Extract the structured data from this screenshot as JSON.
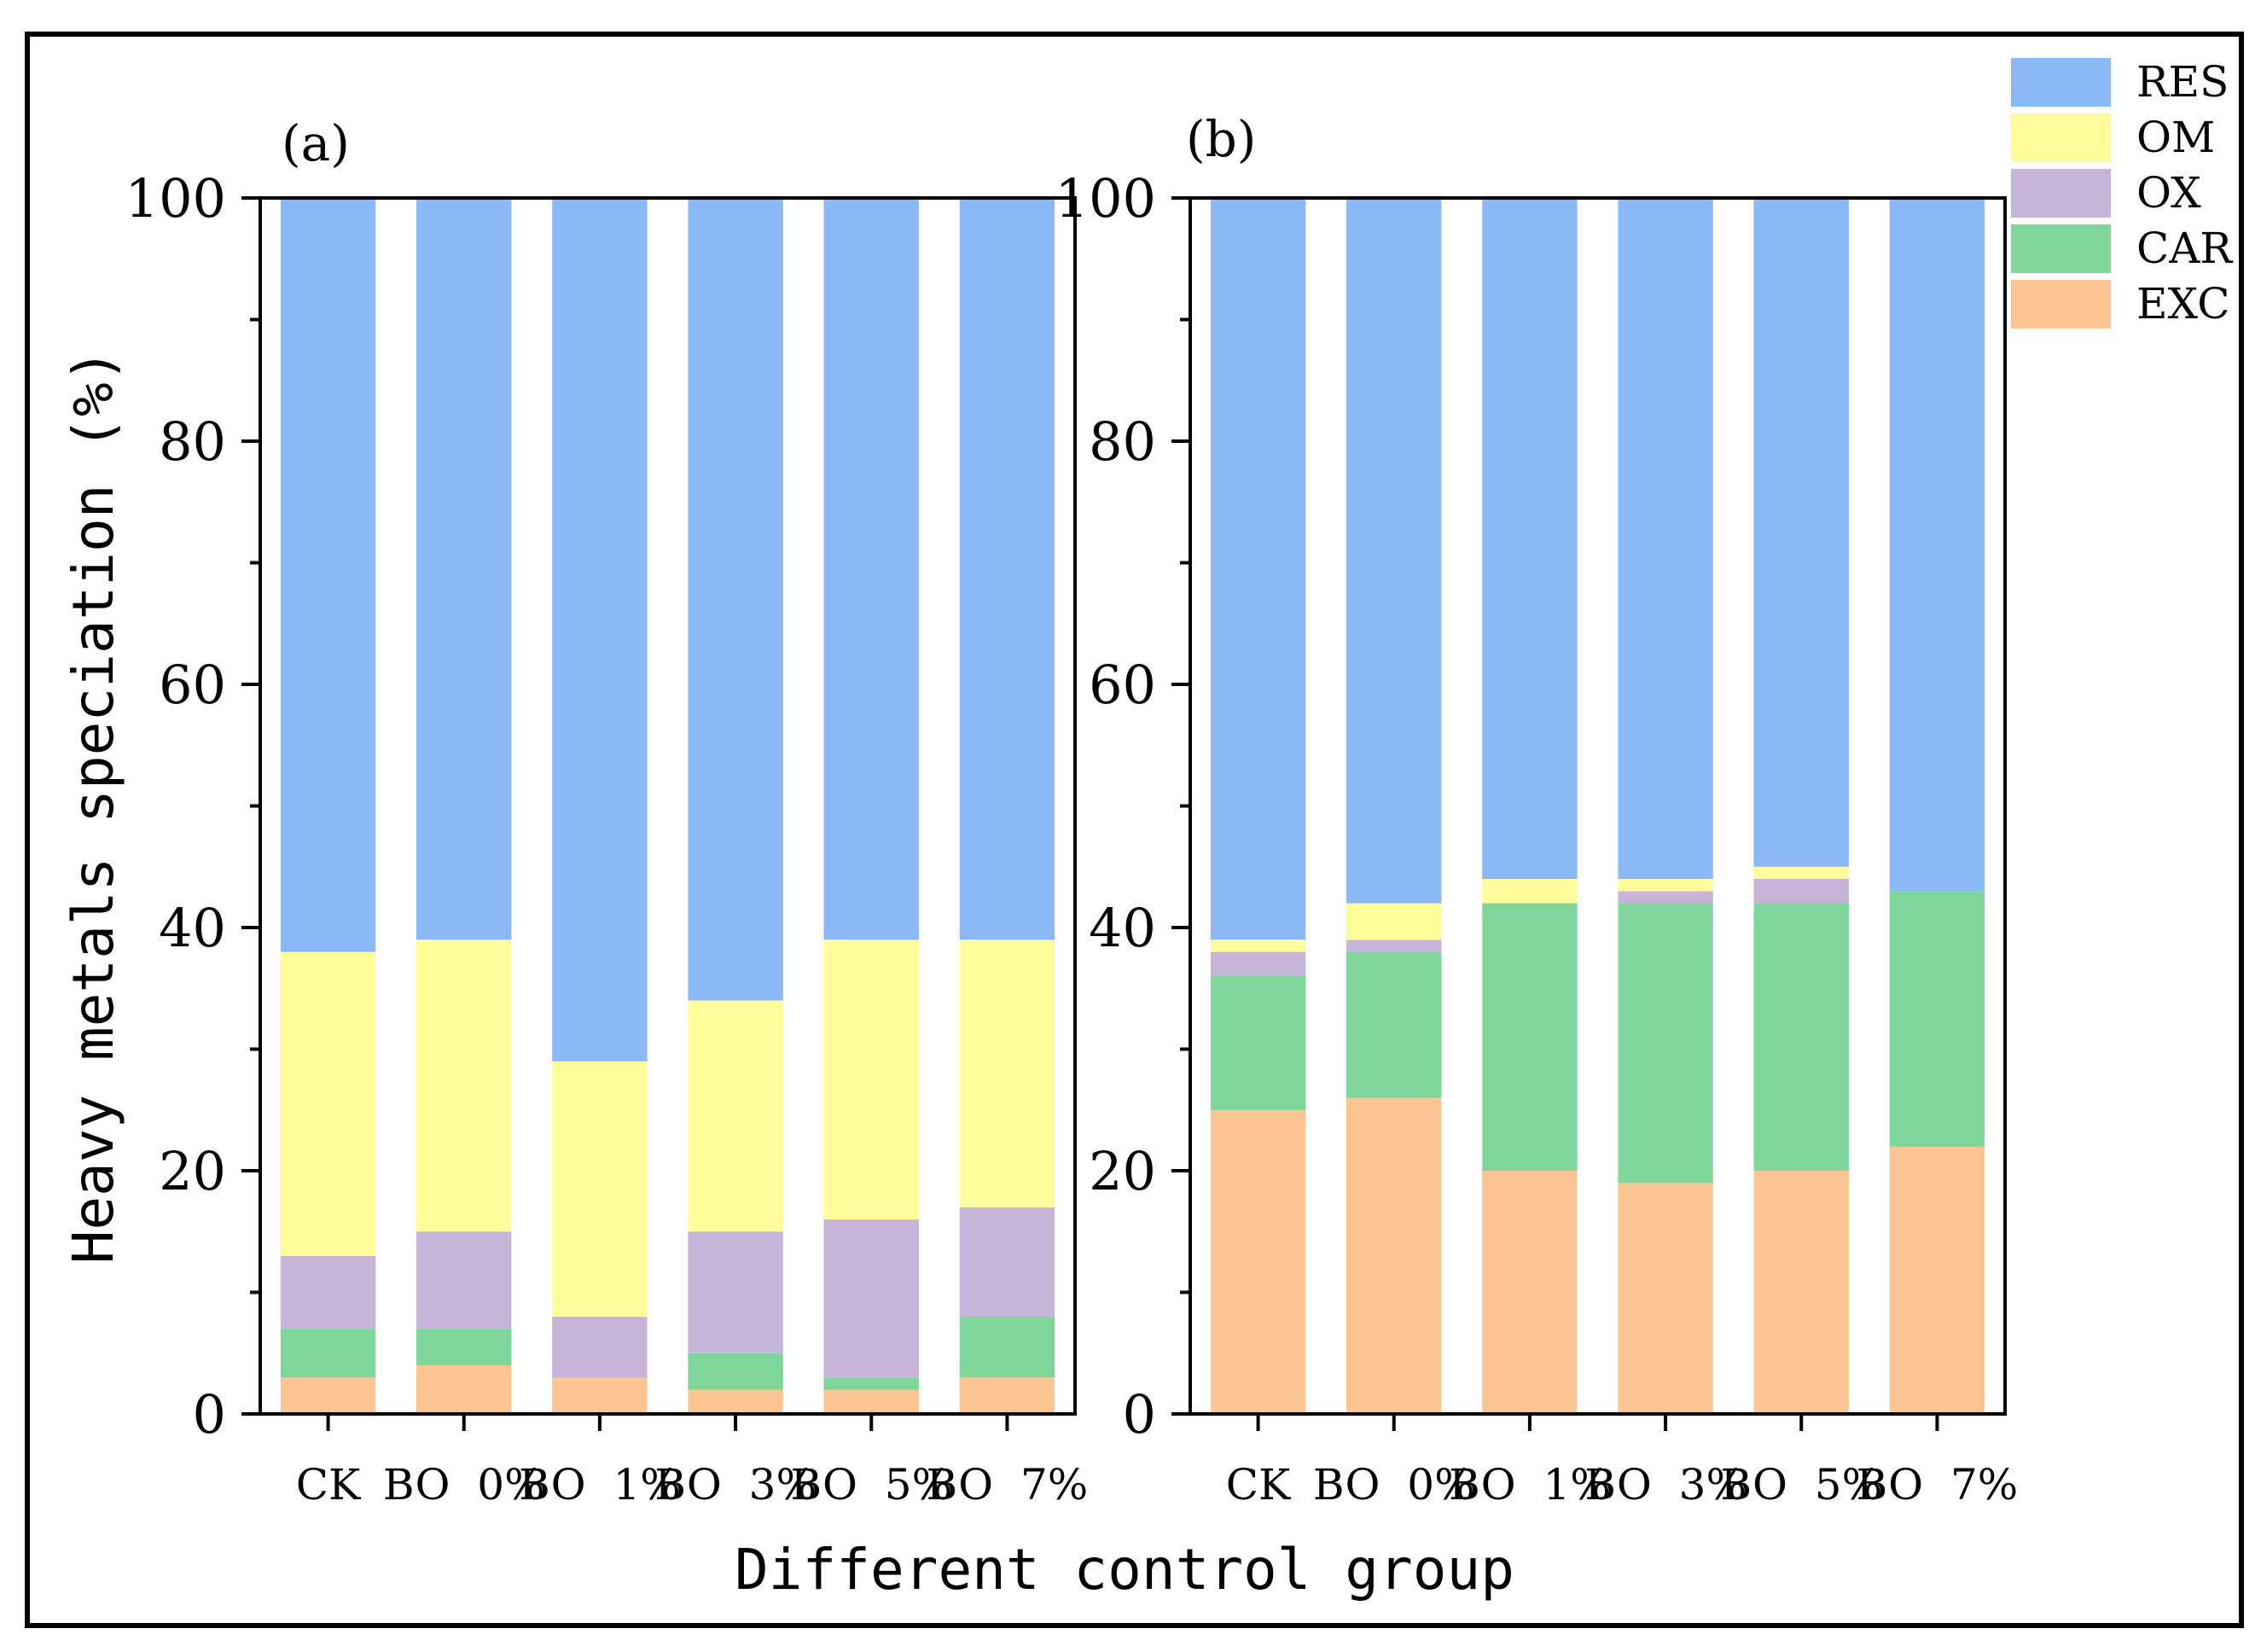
{
  "chart_data": {
    "type": "stacked-bar",
    "xlabel": "Different control group",
    "ylabel": "Heavy metals speciation (%)",
    "ylim": [
      0,
      100
    ],
    "yticks": [
      0,
      20,
      40,
      60,
      80,
      100
    ],
    "categories": [
      "CK",
      "BO  0%",
      "BO  1%",
      "BO  3%",
      "BO  5%",
      "BO  7%"
    ],
    "legend": [
      {
        "name": "RES",
        "color": "#8ab9f5"
      },
      {
        "name": "OM",
        "color": "#fffd9b"
      },
      {
        "name": "OX",
        "color": "#c8b4d9"
      },
      {
        "name": "CAR",
        "color": "#7fd69a"
      },
      {
        "name": "EXC",
        "color": "#fdc593"
      }
    ],
    "panels": [
      {
        "label": "(a)",
        "series": [
          {
            "name": "EXC",
            "values": [
              3,
              4,
              3,
              2,
              2,
              3
            ]
          },
          {
            "name": "CAR",
            "values": [
              4,
              3,
              0,
              3,
              1,
              5
            ]
          },
          {
            "name": "OX",
            "values": [
              6,
              8,
              5,
              10,
              13,
              9
            ]
          },
          {
            "name": "OM",
            "values": [
              25,
              24,
              21,
              19,
              23,
              22
            ]
          },
          {
            "name": "RES",
            "values": [
              62,
              61,
              71,
              66,
              61,
              61
            ]
          }
        ]
      },
      {
        "label": "(b)",
        "series": [
          {
            "name": "EXC",
            "values": [
              25,
              26,
              20,
              19,
              20,
              22
            ]
          },
          {
            "name": "CAR",
            "values": [
              11,
              12,
              22,
              23,
              22,
              21
            ]
          },
          {
            "name": "OX",
            "values": [
              2,
              1,
              0,
              1,
              2,
              0
            ]
          },
          {
            "name": "OM",
            "values": [
              1,
              3,
              2,
              1,
              1,
              0
            ]
          },
          {
            "name": "RES",
            "values": [
              61,
              58,
              56,
              56,
              55,
              57
            ]
          }
        ]
      }
    ]
  }
}
